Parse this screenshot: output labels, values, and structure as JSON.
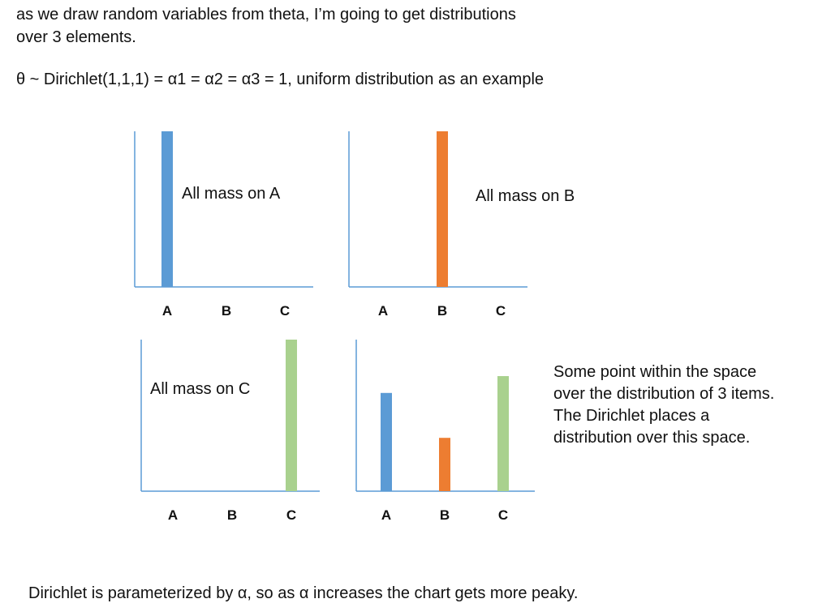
{
  "intro": {
    "line1": "as we draw random variables from theta, I’m going to get distributions",
    "line2": "over 3 elements."
  },
  "theta_line": "θ ~ Dirichlet(1,1,1) = α1 = α2 = α3 = 1, uniform distribution as an example",
  "note": {
    "line1": "Some point within the space",
    "line2": "over the distribution of 3 items.",
    "line3": "The Dirichlet places a",
    "line4": "distribution over this space."
  },
  "footer": "Dirichlet is parameterized by α, so as α increases the chart gets more peaky.",
  "colors": {
    "axis": "#5b9bd5",
    "A": "#5b9bd5",
    "B": "#ed7d31",
    "C": "#a9d18e"
  },
  "chart_data": [
    {
      "type": "bar",
      "categories": [
        "A",
        "B",
        "C"
      ],
      "values": [
        1,
        0,
        0
      ],
      "ylim": [
        0,
        1
      ],
      "annotation": "All mass on A"
    },
    {
      "type": "bar",
      "categories": [
        "A",
        "B",
        "C"
      ],
      "values": [
        0,
        1,
        0
      ],
      "ylim": [
        0,
        1
      ],
      "annotation": "All mass on B"
    },
    {
      "type": "bar",
      "categories": [
        "A",
        "B",
        "C"
      ],
      "values": [
        0,
        0,
        1
      ],
      "ylim": [
        0,
        1
      ],
      "annotation": "All mass on C"
    },
    {
      "type": "bar",
      "categories": [
        "A",
        "B",
        "C"
      ],
      "values": [
        0.35,
        0.19,
        0.41
      ],
      "ylim": [
        0,
        0.54
      ],
      "annotation": ""
    }
  ]
}
